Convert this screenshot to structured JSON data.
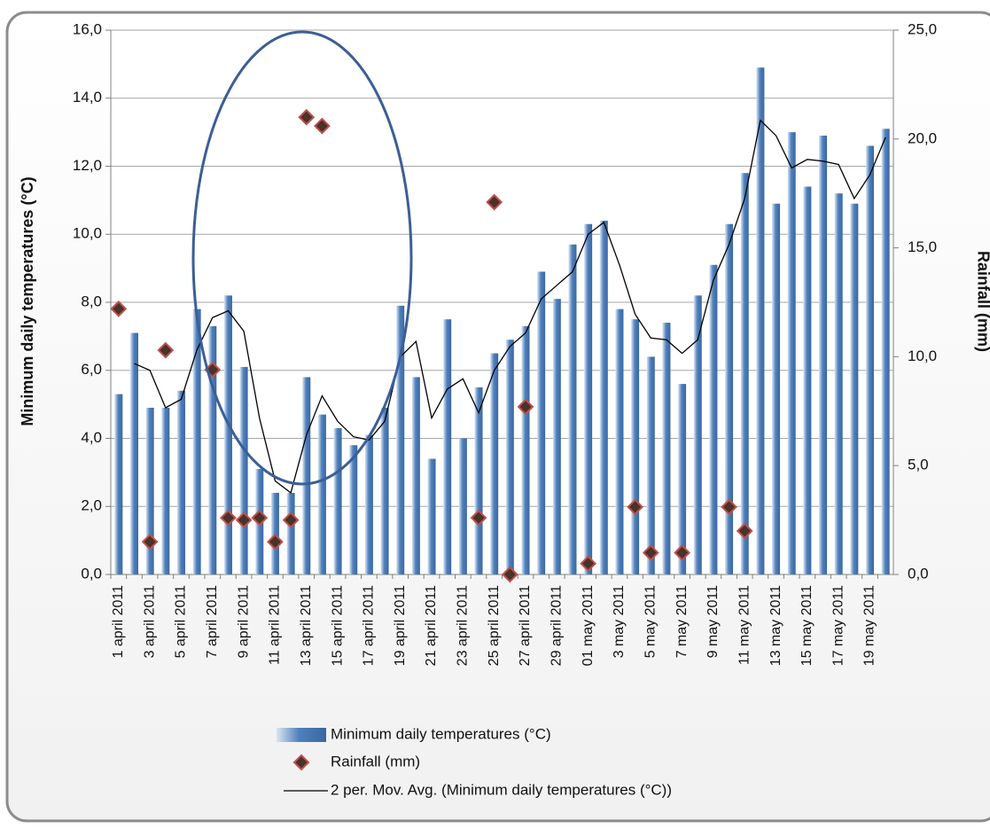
{
  "chart_data": {
    "type": "bar",
    "categories": [
      "1 april 2011",
      null,
      "3 april 2011",
      null,
      "5 april 2011",
      null,
      "7 april 2011",
      null,
      "9 april 2011",
      null,
      "11 april 2011",
      null,
      "13 april 2011",
      null,
      "15 april 2011",
      null,
      "17 april 2011",
      null,
      "19 april 2011",
      null,
      "21 april 2011",
      null,
      "23 april 2011",
      null,
      "25 april 2011",
      null,
      "27 april 2011",
      null,
      "29 april 2011",
      null,
      "01 may 2011",
      null,
      "3 may 2011",
      null,
      "5 may 2011",
      null,
      "7 may 2011",
      null,
      "9 may 2011",
      null,
      "11 may 2011",
      null,
      "13 may 2011",
      null,
      "15 may 2011",
      null,
      "17 may 2011",
      null,
      "19 may 2011",
      null
    ],
    "series": [
      {
        "name": "Minimum daily temperatures  (°C)",
        "type": "bar",
        "color": "#4f81bd",
        "values": [
          5.3,
          7.1,
          4.9,
          4.9,
          5.4,
          7.8,
          7.3,
          8.2,
          6.1,
          3.1,
          2.4,
          2.4,
          5.8,
          4.7,
          4.3,
          3.8,
          4.1,
          4.9,
          7.9,
          5.8,
          3.4,
          7.5,
          4.0,
          5.5,
          6.5,
          6.9,
          7.3,
          8.9,
          8.1,
          9.7,
          10.3,
          10.4,
          7.8,
          7.5,
          6.4,
          7.4,
          5.6,
          8.2,
          9.1,
          10.3,
          11.8,
          14.9,
          10.9,
          13.0,
          11.4,
          12.9,
          11.2,
          10.9,
          12.6,
          13.1
        ]
      },
      {
        "name": "Rainfall (mm)",
        "type": "scatter",
        "axis": "y2",
        "color": "#c0504d",
        "values": [
          12.2,
          null,
          1.5,
          10.3,
          null,
          null,
          9.4,
          2.6,
          2.5,
          2.6,
          1.5,
          2.5,
          21.0,
          20.6,
          null,
          null,
          null,
          null,
          null,
          null,
          null,
          null,
          null,
          2.6,
          17.1,
          0.0,
          7.7,
          null,
          null,
          null,
          0.5,
          null,
          null,
          3.1,
          1.0,
          null,
          1.0,
          null,
          null,
          3.1,
          2.0,
          null,
          null,
          null,
          null,
          null,
          null,
          null,
          null,
          null
        ]
      },
      {
        "name": "2 per. Mov. Avg. (Minimum daily temperatures  (°C))",
        "type": "line",
        "color": "#000000",
        "values": [
          null,
          6.2,
          6.0,
          4.9,
          5.15,
          6.6,
          7.55,
          7.75,
          7.15,
          4.6,
          2.75,
          2.4,
          4.1,
          5.25,
          4.5,
          4.05,
          3.95,
          4.5,
          6.4,
          6.85,
          4.6,
          5.45,
          5.75,
          4.75,
          6.0,
          6.7,
          7.1,
          8.1,
          8.5,
          8.9,
          10.0,
          10.35,
          9.1,
          7.65,
          6.95,
          6.9,
          6.5,
          6.9,
          8.65,
          9.7,
          11.05,
          13.35,
          12.9,
          11.95,
          12.2,
          12.15,
          12.05,
          11.05,
          11.75,
          12.85
        ]
      }
    ],
    "y_label": "Minimum daily temperatures  (°C)",
    "y2_label": "Rainfall (mm)",
    "ylim": [
      0,
      16
    ],
    "yticks": [
      {
        "value": 0,
        "label": "0,0"
      },
      {
        "value": 2,
        "label": "2,0"
      },
      {
        "value": 4,
        "label": "4,0"
      },
      {
        "value": 6,
        "label": "6,0"
      },
      {
        "value": 8,
        "label": "8,0"
      },
      {
        "value": 10,
        "label": "10,0"
      },
      {
        "value": 12,
        "label": "12,0"
      },
      {
        "value": 14,
        "label": "14,0"
      },
      {
        "value": 16,
        "label": "16,0"
      }
    ],
    "y2lim": [
      0,
      25
    ],
    "y2ticks": [
      {
        "value": 0,
        "label": "0,0"
      },
      {
        "value": 5,
        "label": "5,0"
      },
      {
        "value": 10,
        "label": "10,0"
      },
      {
        "value": 15,
        "label": "15,0"
      },
      {
        "value": 20,
        "label": "20,0"
      },
      {
        "value": 25,
        "label": "25,0"
      }
    ],
    "grid": true,
    "legend": "bottom"
  }
}
